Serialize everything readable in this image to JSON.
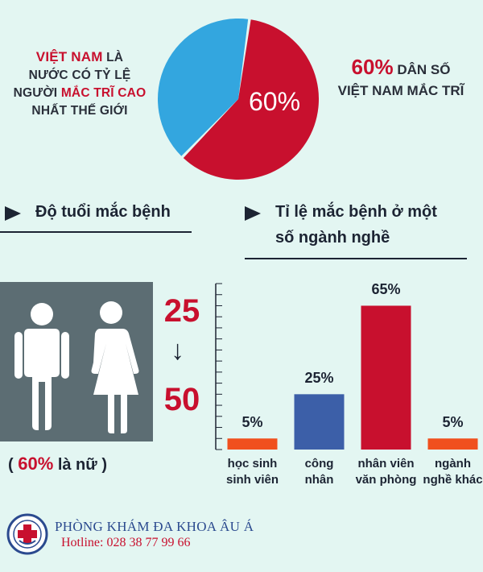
{
  "intro_left": {
    "highlight1": "VIỆT NAM",
    "text1": " LÀ",
    "text2": "NƯỚC CÓ TỶ LỆ",
    "text3": "NGƯỜI ",
    "highlight2": "MẮC TRĨ CAO",
    "text4": "NHẤT THẾ GIỚI"
  },
  "pie": {
    "label": "60%",
    "values": [
      60,
      40
    ],
    "colors": [
      "#c8102e",
      "#33a6df"
    ]
  },
  "intro_right": {
    "pct": "60%",
    "line1_rest": " DÂN SỐ",
    "line2": "VIỆT NAM MẮC TRĨ"
  },
  "sections": {
    "age_heading": "Độ tuổi mắc bệnh",
    "job_heading_line1": "Tỉ lệ mắc bệnh ở một",
    "job_heading_line2": "số ngành nghề"
  },
  "age": {
    "from": "25",
    "arrow": "↓",
    "to": "50",
    "note_open": "( ",
    "note_pct": "60%",
    "note_rest": " là nữ )"
  },
  "chart_data": {
    "type": "bar",
    "categories": [
      [
        "học sinh",
        "sinh viên"
      ],
      [
        "công",
        "nhân"
      ],
      [
        "nhân viên",
        "văn phòng"
      ],
      [
        "ngành",
        "nghề khác"
      ]
    ],
    "values": [
      5,
      25,
      65,
      5
    ],
    "value_labels": [
      "5%",
      "25%",
      "65%",
      "5%"
    ],
    "colors": [
      "#f0501e",
      "#3c5fa8",
      "#c8102e",
      "#f0501e"
    ],
    "ylim": [
      0,
      75
    ],
    "tick_step": 5,
    "grid": false
  },
  "footer": {
    "clinic_name": "PHÒNG KHÁM ĐA KHOA ÂU Á",
    "hotline": "Hotline: 028 38 77 99 66"
  }
}
